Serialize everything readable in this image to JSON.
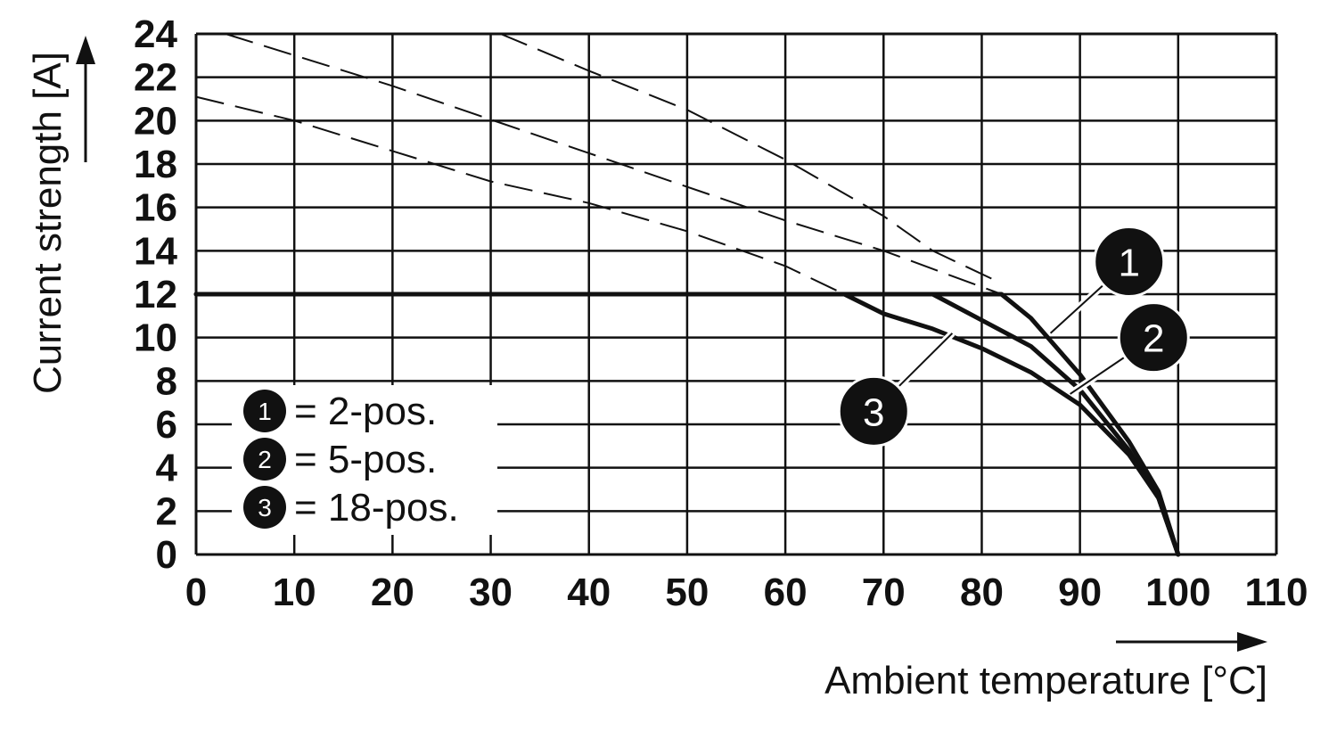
{
  "chart_data": {
    "type": "line",
    "ylabel": "Current strength [A]",
    "xlabel": "Ambient temperature [°C]",
    "xlim": [
      0,
      110
    ],
    "ylim": [
      0,
      24
    ],
    "x_ticks": [
      0,
      10,
      20,
      30,
      40,
      50,
      60,
      70,
      80,
      90,
      100,
      110
    ],
    "y_ticks": [
      0,
      2,
      4,
      6,
      8,
      10,
      12,
      14,
      16,
      18,
      20,
      22,
      24
    ],
    "grid": true,
    "legend_placement": "bottom-left",
    "series": [
      {
        "id": "1",
        "legend_label": "= 2-pos.",
        "solid": [
          [
            0,
            12
          ],
          [
            82,
            12
          ],
          [
            85,
            10.9
          ],
          [
            90,
            8.3
          ],
          [
            95,
            5.2
          ],
          [
            98,
            2.9
          ],
          [
            100,
            0
          ]
        ],
        "dashed": [
          [
            3,
            24
          ],
          [
            20,
            21.6
          ],
          [
            40,
            18.5
          ],
          [
            60,
            15.4
          ],
          [
            70,
            14
          ],
          [
            82,
            12
          ]
        ]
      },
      {
        "id": "2",
        "legend_label": "= 5-pos.",
        "solid": [
          [
            0,
            12
          ],
          [
            75,
            12
          ],
          [
            80,
            10.8
          ],
          [
            85,
            9.6
          ],
          [
            90,
            7.6
          ],
          [
            95,
            4.8
          ],
          [
            98,
            2.6
          ],
          [
            100,
            0
          ]
        ],
        "dashed": [
          [
            31,
            24
          ],
          [
            40,
            22.3
          ],
          [
            50,
            20.5
          ],
          [
            60,
            18.2
          ],
          [
            70,
            15.6
          ],
          [
            75,
            14
          ],
          [
            82,
            12.5
          ]
        ]
      },
      {
        "id": "3",
        "legend_label": "= 18-pos.",
        "solid": [
          [
            0,
            12
          ],
          [
            66,
            12
          ],
          [
            70,
            11.1
          ],
          [
            75,
            10.4
          ],
          [
            80,
            9.5
          ],
          [
            85,
            8.4
          ],
          [
            90,
            6.9
          ],
          [
            95,
            4.6
          ],
          [
            98,
            2.6
          ],
          [
            100,
            0
          ]
        ],
        "dashed": [
          [
            0,
            21.1
          ],
          [
            10,
            20
          ],
          [
            20,
            18.6
          ],
          [
            30,
            17.2
          ],
          [
            40,
            16.2
          ],
          [
            50,
            14.9
          ],
          [
            60,
            13.3
          ],
          [
            66,
            12
          ]
        ]
      }
    ],
    "callouts": [
      {
        "label": "1",
        "bubble": [
          95,
          13.5
        ],
        "anchor": [
          87,
          10.2
        ]
      },
      {
        "label": "2",
        "bubble": [
          97.5,
          10
        ],
        "anchor": [
          89,
          7.4
        ]
      },
      {
        "label": "3",
        "bubble": [
          69,
          6.6
        ],
        "anchor": [
          77,
          10.2
        ]
      }
    ],
    "colors": {
      "curve": "#111111",
      "grid": "#111111",
      "badge": "#111111"
    }
  }
}
